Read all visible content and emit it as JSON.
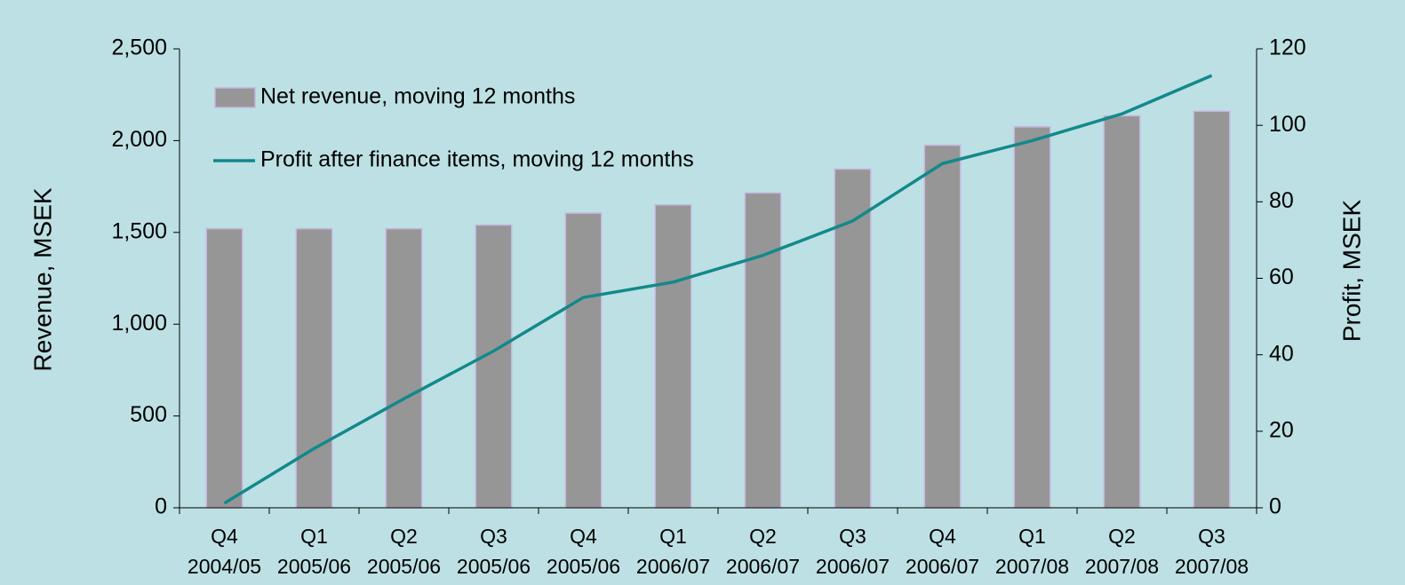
{
  "chart_data": {
    "type": "bar",
    "categories": [
      [
        "Q4",
        "2004/05"
      ],
      [
        "Q1",
        "2005/06"
      ],
      [
        "Q2",
        "2005/06"
      ],
      [
        "Q3",
        "2005/06"
      ],
      [
        "Q4",
        "2005/06"
      ],
      [
        "Q1",
        "2006/07"
      ],
      [
        "Q2",
        "2006/07"
      ],
      [
        "Q3",
        "2006/07"
      ],
      [
        "Q4",
        "2006/07"
      ],
      [
        "Q1",
        "2007/08"
      ],
      [
        "Q2",
        "2007/08"
      ],
      [
        "Q3",
        "2007/08"
      ]
    ],
    "series": [
      {
        "name": "Net revenue, moving 12 months",
        "type": "bar",
        "axis": "y",
        "color": "#969696",
        "values": [
          1520,
          1520,
          1520,
          1540,
          1605,
          1650,
          1715,
          1845,
          1975,
          2075,
          2135,
          2160
        ]
      },
      {
        "name": "Profit after finance items, moving 12 months",
        "type": "line",
        "axis": "y2",
        "color": "#12898a",
        "values": [
          1.2,
          15.5,
          28.5,
          41,
          55,
          59,
          66,
          75,
          90,
          96,
          103,
          113
        ]
      }
    ],
    "ylabel": "Revenue, MSEK",
    "y2label": "Profit, MSEK",
    "ylim": [
      0,
      2500
    ],
    "yticks": [
      0,
      500,
      {
        "value": 1000,
        "label": "1,000"
      },
      {
        "value": 1500,
        "label": "1,500"
      },
      {
        "value": 2000,
        "label": "2,000"
      },
      {
        "value": 2500,
        "label": "2,500"
      }
    ],
    "y2lim": [
      0,
      120
    ],
    "y2ticks": [
      0,
      20,
      40,
      60,
      80,
      100,
      120
    ],
    "legend": "upper left",
    "grid": false
  }
}
